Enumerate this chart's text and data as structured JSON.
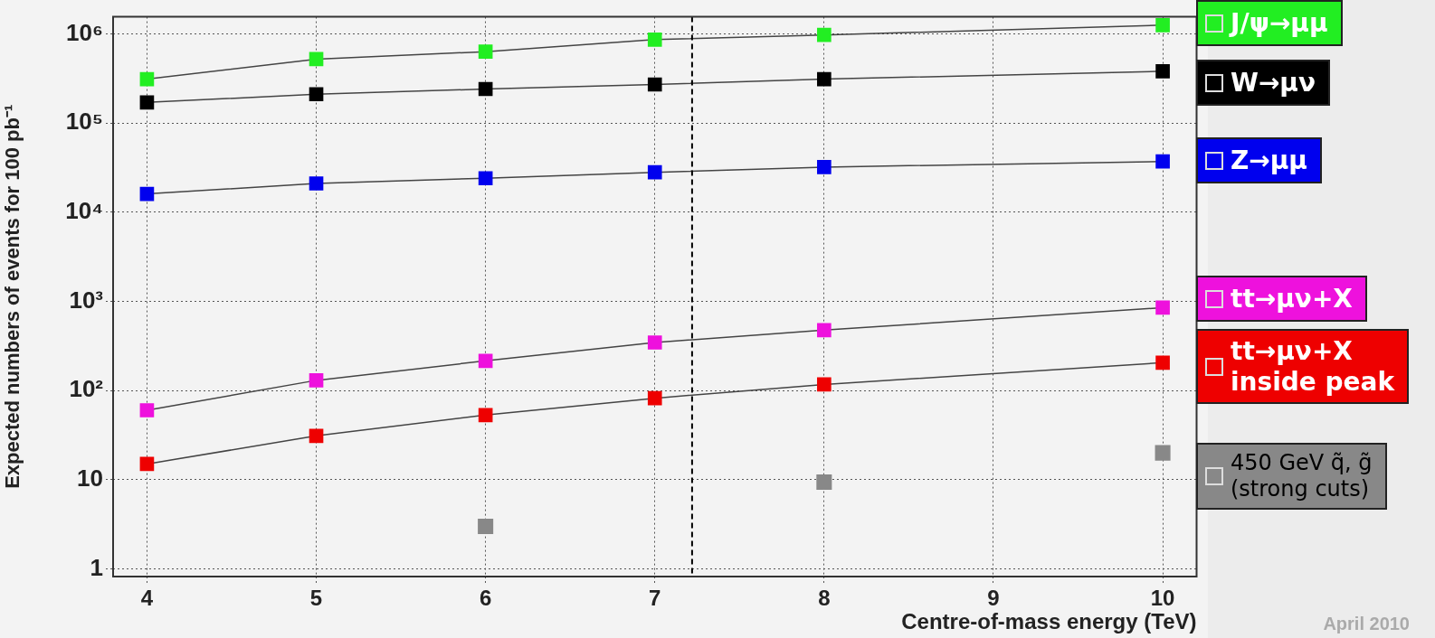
{
  "chart_data": {
    "type": "line",
    "xlabel": "Centre-of-mass energy (TeV)",
    "ylabel": "Expected numbers of events for 100 pb⁻¹",
    "x": [
      4,
      5,
      6,
      7,
      8,
      10
    ],
    "series": [
      {
        "name": "J/ψ→μμ",
        "color": "#22ee22",
        "values": [
          310000,
          520000,
          630000,
          860000,
          970000,
          1250000
        ]
      },
      {
        "name": "W→μν",
        "color": "#000000",
        "values": [
          170000,
          210000,
          240000,
          270000,
          310000,
          380000
        ]
      },
      {
        "name": "Z→μμ",
        "color": "#0000ee",
        "values": [
          16000,
          21000,
          24000,
          28000,
          32000,
          37000
        ]
      },
      {
        "name": "tt→μν+X",
        "color": "#ee11dd",
        "values": [
          60,
          130,
          215,
          345,
          475,
          850
        ]
      },
      {
        "name": "tt→μν+X\ninside peak",
        "color": "#ee0000",
        "values": [
          15,
          31,
          53,
          82,
          117,
          205
        ]
      },
      {
        "name": "450 GeV q̃, g̃\n(strong cuts)",
        "type": "scatter",
        "color": "#888888",
        "values": [
          null,
          null,
          3.0,
          null,
          9.4,
          20
        ]
      }
    ],
    "xlim": [
      3.8,
      10.2
    ],
    "xticks": [
      4,
      5,
      6,
      7,
      8,
      9,
      10
    ],
    "ylim": [
      0.82,
      1550000
    ],
    "yticks": [
      1,
      10,
      {
        "value": 100,
        "label": "10²"
      },
      {
        "value": 1000,
        "label": "10³"
      },
      {
        "value": 10000,
        "label": "10⁴"
      },
      {
        "value": 100000,
        "label": "10⁵"
      },
      {
        "value": 1000000,
        "label": "10⁶"
      }
    ],
    "log": "y",
    "grid": true,
    "marker": "square",
    "legend": "right",
    "ref_lines": [
      {
        "axis": "x",
        "value": 7.22,
        "line_style": "dashed",
        "color": "#000000"
      }
    ],
    "annotations": [
      "April 2010"
    ]
  }
}
